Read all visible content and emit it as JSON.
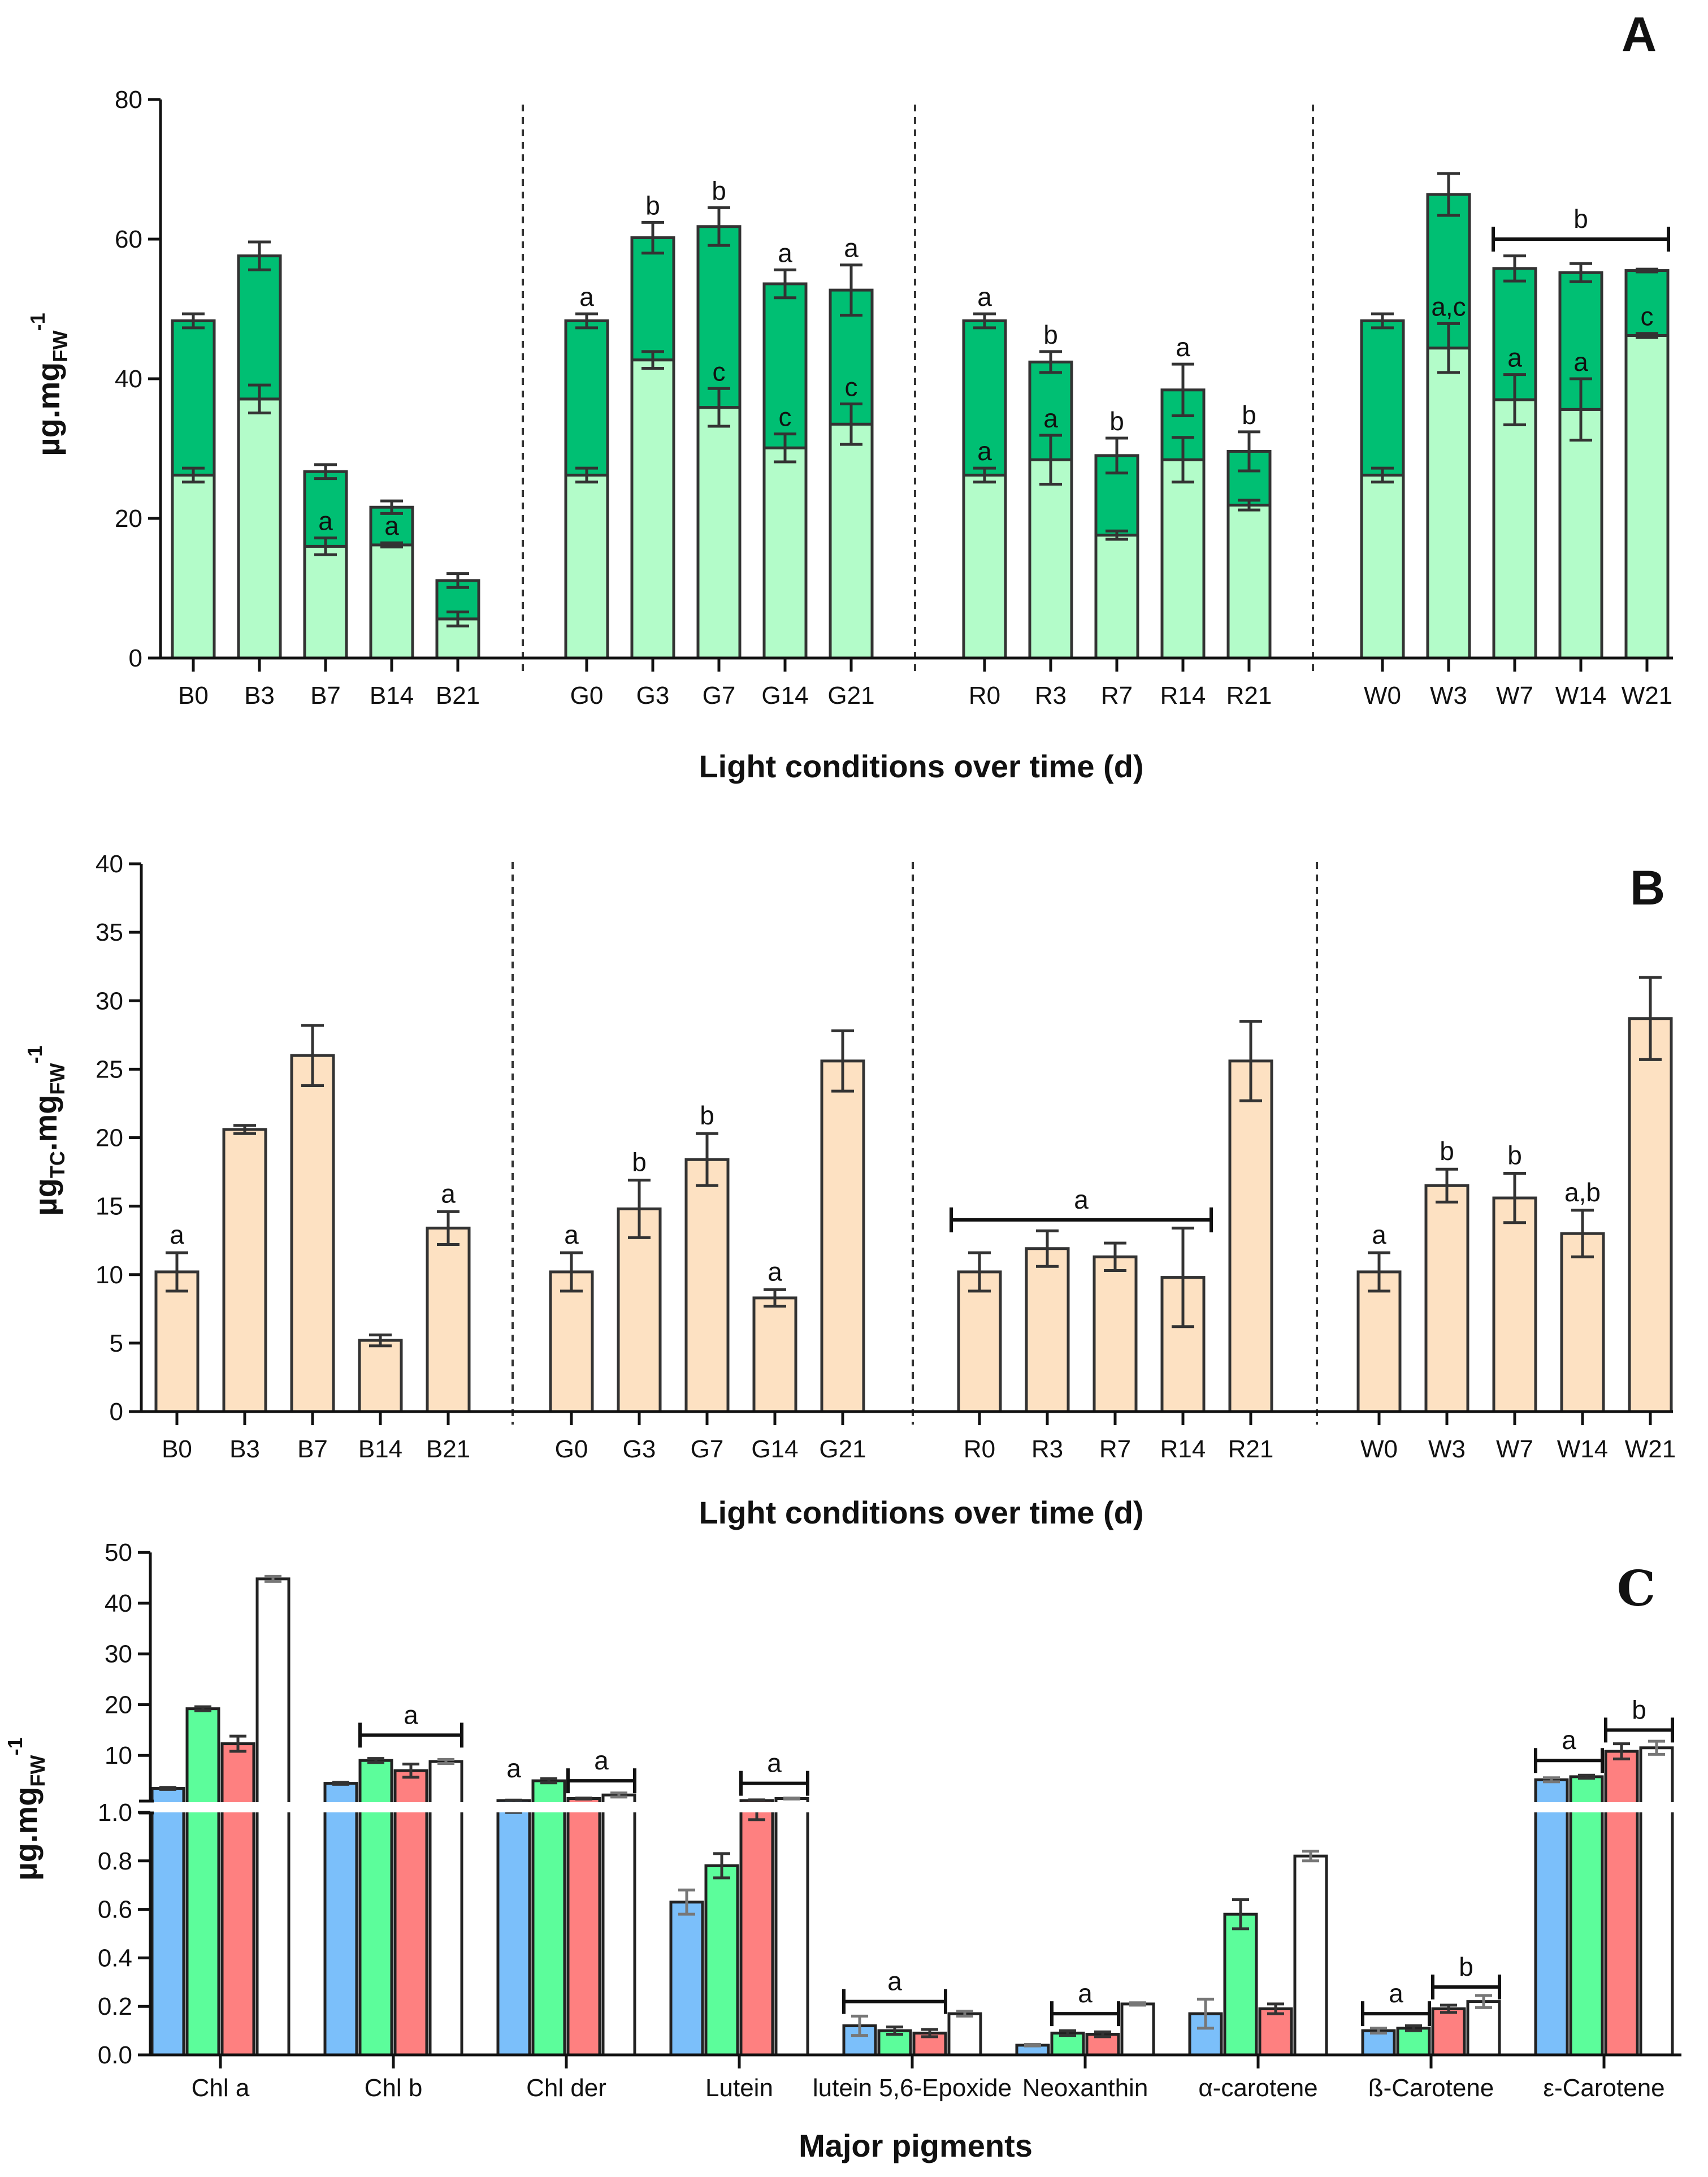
{
  "chart_data": [
    {
      "panel": "A",
      "type": "bar",
      "stacked": true,
      "categories": [
        "B0",
        "B3",
        "B7",
        "B14",
        "B21",
        "G0",
        "G3",
        "G7",
        "G14",
        "G21",
        "R0",
        "R3",
        "R7",
        "R14",
        "R21",
        "W0",
        "W3",
        "W7",
        "W14",
        "W21"
      ],
      "series": [
        {
          "name": "lower",
          "values": [
            26.2,
            37.1,
            16.0,
            16.2,
            5.6,
            26.2,
            42.7,
            35.9,
            30.1,
            33.5,
            26.2,
            28.4,
            17.6,
            28.4,
            21.9,
            26.2,
            44.4,
            37.0,
            35.6,
            46.2
          ],
          "errors": [
            1.0,
            2.0,
            1.2,
            0.3,
            1.0,
            1.0,
            1.2,
            2.7,
            2.0,
            2.9,
            1.0,
            3.5,
            0.6,
            3.2,
            0.7,
            1.0,
            3.5,
            3.6,
            4.4,
            0.3
          ]
        },
        {
          "name": "total",
          "values": [
            48.3,
            57.6,
            26.7,
            21.6,
            11.1,
            48.3,
            60.2,
            61.8,
            53.6,
            52.7,
            48.3,
            42.4,
            29.0,
            38.4,
            29.6,
            48.3,
            66.4,
            55.8,
            55.2,
            55.5
          ],
          "errors": [
            1.0,
            2.0,
            1.0,
            0.9,
            1.0,
            1.0,
            2.2,
            2.7,
            2.0,
            3.6,
            1.0,
            1.5,
            2.5,
            3.7,
            2.8,
            1.0,
            3.0,
            1.8,
            1.3,
            0.2
          ]
        }
      ],
      "colors": {
        "lower": "#b3fcc9",
        "upper": "#00bf73"
      },
      "ylim": [
        0,
        80
      ],
      "yticks": [
        "0",
        "20",
        "40",
        "60",
        "80"
      ],
      "ylabel": {
        "main": "µg.mg",
        "sub": "FW",
        "sup": "-1"
      },
      "xlabel": "Light conditions over time (d)",
      "panel_label": "A",
      "annotations": [
        {
          "bar": 2,
          "pos": "lower",
          "text": "a"
        },
        {
          "bar": 3,
          "pos": "lower",
          "text": "a"
        },
        {
          "bar": 5,
          "pos": "top",
          "text": "a"
        },
        {
          "bar": 6,
          "pos": "top",
          "text": "b"
        },
        {
          "bar": 7,
          "pos": "top",
          "text": "b"
        },
        {
          "bar": 8,
          "pos": "top",
          "text": "a"
        },
        {
          "bar": 9,
          "pos": "top",
          "text": "a"
        },
        {
          "bar": 7,
          "pos": "lower",
          "text": "c"
        },
        {
          "bar": 8,
          "pos": "lower",
          "text": "c"
        },
        {
          "bar": 9,
          "pos": "lower",
          "text": "c"
        },
        {
          "bar": 10,
          "pos": "top",
          "text": "a"
        },
        {
          "bar": 10,
          "pos": "lower",
          "text": "a"
        },
        {
          "bar": 11,
          "pos": "top",
          "text": "b"
        },
        {
          "bar": 11,
          "pos": "lower",
          "text": "a"
        },
        {
          "bar": 12,
          "pos": "top",
          "text": "b"
        },
        {
          "bar": 13,
          "pos": "top",
          "text": "a"
        },
        {
          "bar": 14,
          "pos": "top",
          "text": "b"
        },
        {
          "bar": 16,
          "pos": "lower",
          "text": "a,c"
        },
        {
          "bar": 17,
          "pos": "lower",
          "text": "a"
        },
        {
          "bar": 18,
          "pos": "lower",
          "text": "a"
        },
        {
          "bar": 19,
          "pos": "lower",
          "text": "c"
        }
      ],
      "brackets": [
        {
          "from": 17,
          "to": 19,
          "y": 60,
          "text": "b"
        }
      ]
    },
    {
      "panel": "B",
      "type": "bar",
      "categories": [
        "B0",
        "B3",
        "B7",
        "B14",
        "B21",
        "G0",
        "G3",
        "G7",
        "G14",
        "G21",
        "R0",
        "R3",
        "R7",
        "R14",
        "R21",
        "W0",
        "W3",
        "W7",
        "W14",
        "W21"
      ],
      "values": [
        10.2,
        20.6,
        26.0,
        5.2,
        13.4,
        10.2,
        14.8,
        18.4,
        8.3,
        25.6,
        10.2,
        11.9,
        11.3,
        9.8,
        25.6,
        10.2,
        16.5,
        15.6,
        13.0,
        28.7
      ],
      "errors": [
        1.4,
        0.3,
        2.2,
        0.4,
        1.2,
        1.4,
        2.1,
        1.9,
        0.6,
        2.2,
        1.4,
        1.3,
        1.0,
        3.6,
        2.9,
        1.4,
        1.2,
        1.8,
        1.7,
        3.0
      ],
      "color": "#fde1c2",
      "ylim": [
        0,
        40
      ],
      "yticks": [
        "0",
        "5",
        "10",
        "15",
        "20",
        "25",
        "30",
        "35",
        "40"
      ],
      "ylabel": {
        "main": "µg",
        "sub1": "TC",
        "mid": ".mg",
        "sub": "FW",
        "sup": "-1"
      },
      "xlabel": "Light conditions over time (d)",
      "panel_label": "B",
      "annotations": [
        {
          "bar": 0,
          "text": "a"
        },
        {
          "bar": 4,
          "text": "a"
        },
        {
          "bar": 5,
          "text": "a"
        },
        {
          "bar": 6,
          "text": "b"
        },
        {
          "bar": 7,
          "text": "b"
        },
        {
          "bar": 8,
          "text": "a"
        },
        {
          "bar": 15,
          "text": "a"
        },
        {
          "bar": 16,
          "text": "b"
        },
        {
          "bar": 17,
          "text": "b"
        },
        {
          "bar": 18,
          "text": "a,b"
        }
      ],
      "brackets": [
        {
          "from": 10,
          "to": 13,
          "y": 14,
          "text": "a"
        }
      ]
    },
    {
      "panel": "C",
      "type": "bar",
      "grouped": true,
      "categories": [
        "Chl a",
        "Chl b",
        "Chl der",
        "Lutein",
        "lutein 5,6-Epoxide",
        "Neoxanthin",
        "α-carotene",
        "ß-Carotene",
        "ε-Carotene"
      ],
      "series": [
        {
          "name": "blue",
          "color": "#7bbffa",
          "values": [
            3.5,
            4.5,
            1.1,
            0.63,
            0.12,
            0.04,
            0.17,
            0.1,
            5.2
          ],
          "errors": [
            0.2,
            0.2,
            0.1,
            0.05,
            0.04,
            0.003,
            0.06,
            0.01,
            0.4
          ]
        },
        {
          "name": "green",
          "color": "#5cfd9b",
          "values": [
            19.2,
            9.0,
            5.0,
            0.78,
            0.1,
            0.09,
            0.58,
            0.11,
            5.8
          ],
          "errors": [
            0.4,
            0.4,
            0.4,
            0.05,
            0.015,
            0.01,
            0.06,
            0.01,
            0.3
          ]
        },
        {
          "name": "red",
          "color": "#fe8080",
          "values": [
            12.3,
            7.0,
            1.5,
            1.1,
            0.09,
            0.085,
            0.19,
            0.19,
            10.8
          ],
          "errors": [
            1.5,
            1.3,
            0.1,
            0.13,
            0.015,
            0.01,
            0.02,
            0.015,
            1.5
          ]
        },
        {
          "name": "white",
          "color": "#ffffff",
          "values": [
            44.8,
            8.8,
            2.2,
            1.5,
            0.17,
            0.21,
            0.82,
            0.22,
            11.5
          ],
          "errors": [
            0.5,
            0.4,
            0.4,
            0.1,
            0.01,
            0.005,
            0.02,
            0.025,
            1.3
          ]
        }
      ],
      "ylim_lower": [
        0,
        1.0
      ],
      "ylim_upper": [
        1.0,
        50
      ],
      "yticks_lower": [
        "0.0",
        "0.2",
        "0.4",
        "0.6",
        "0.8",
        "1.0"
      ],
      "yticks_upper": [
        "10",
        "20",
        "30",
        "40",
        "50"
      ],
      "ylabel": {
        "main": "µg.mg",
        "sub": "FW",
        "sup": "-1"
      },
      "xlabel": "Major pigments",
      "panel_label": "C",
      "annotations": [
        {
          "group": 2,
          "bar": 0,
          "text": "a"
        }
      ],
      "brackets": [
        {
          "group": 1,
          "from": 1,
          "to": 3,
          "y": 14,
          "text": "a"
        },
        {
          "group": 2,
          "from": 2,
          "to": 3,
          "y": 5,
          "text": "a"
        },
        {
          "group": 3,
          "from": 2,
          "to": 3,
          "y": 4.5,
          "text": "a"
        },
        {
          "group": 4,
          "from": 0,
          "to": 2,
          "y": 0.22,
          "text": "a"
        },
        {
          "group": 5,
          "from": 1,
          "to": 2,
          "y": 0.17,
          "text": "a"
        },
        {
          "group": 7,
          "from": 0,
          "to": 1,
          "y": 0.17,
          "text": "a"
        },
        {
          "group": 7,
          "from": 2,
          "to": 3,
          "y": 0.28,
          "text": "b"
        },
        {
          "group": 8,
          "from": 0,
          "to": 1,
          "y": 9,
          "text": "a"
        },
        {
          "group": 8,
          "from": 2,
          "to": 3,
          "y": 15,
          "text": "b"
        }
      ]
    }
  ]
}
